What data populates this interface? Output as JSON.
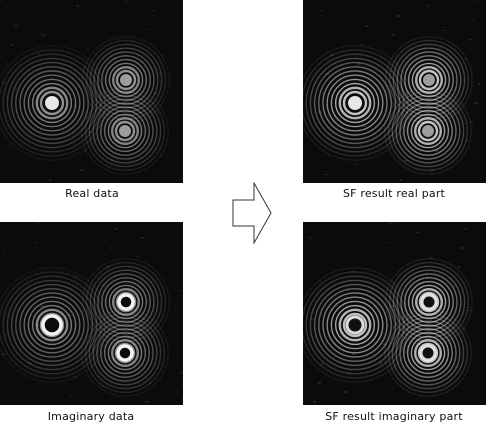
{
  "figure": {
    "panels": [
      {
        "id": "real-data",
        "caption": "Real data",
        "fringe_contrast": 0.55,
        "center_style": "bright-core",
        "background_noise": 0.25
      },
      {
        "id": "sf-real",
        "caption": "SF result real part",
        "fringe_contrast": 0.75,
        "center_style": "bright-core",
        "background_noise": 0.45
      },
      {
        "id": "imag-data",
        "caption": "Imaginary data",
        "fringe_contrast": 0.55,
        "center_style": "ring",
        "background_noise": 0.25
      },
      {
        "id": "sf-imag",
        "caption": "SF result imaginary part",
        "fringe_contrast": 0.75,
        "center_style": "dark-core",
        "background_noise": 0.45
      }
    ],
    "arrow_icon": "right-arrow-outline-icon",
    "colors": {
      "background": "#ffffff",
      "panel": "#0b0b0b",
      "fringe": "#ffffff",
      "arrow_stroke": "#333333"
    }
  }
}
